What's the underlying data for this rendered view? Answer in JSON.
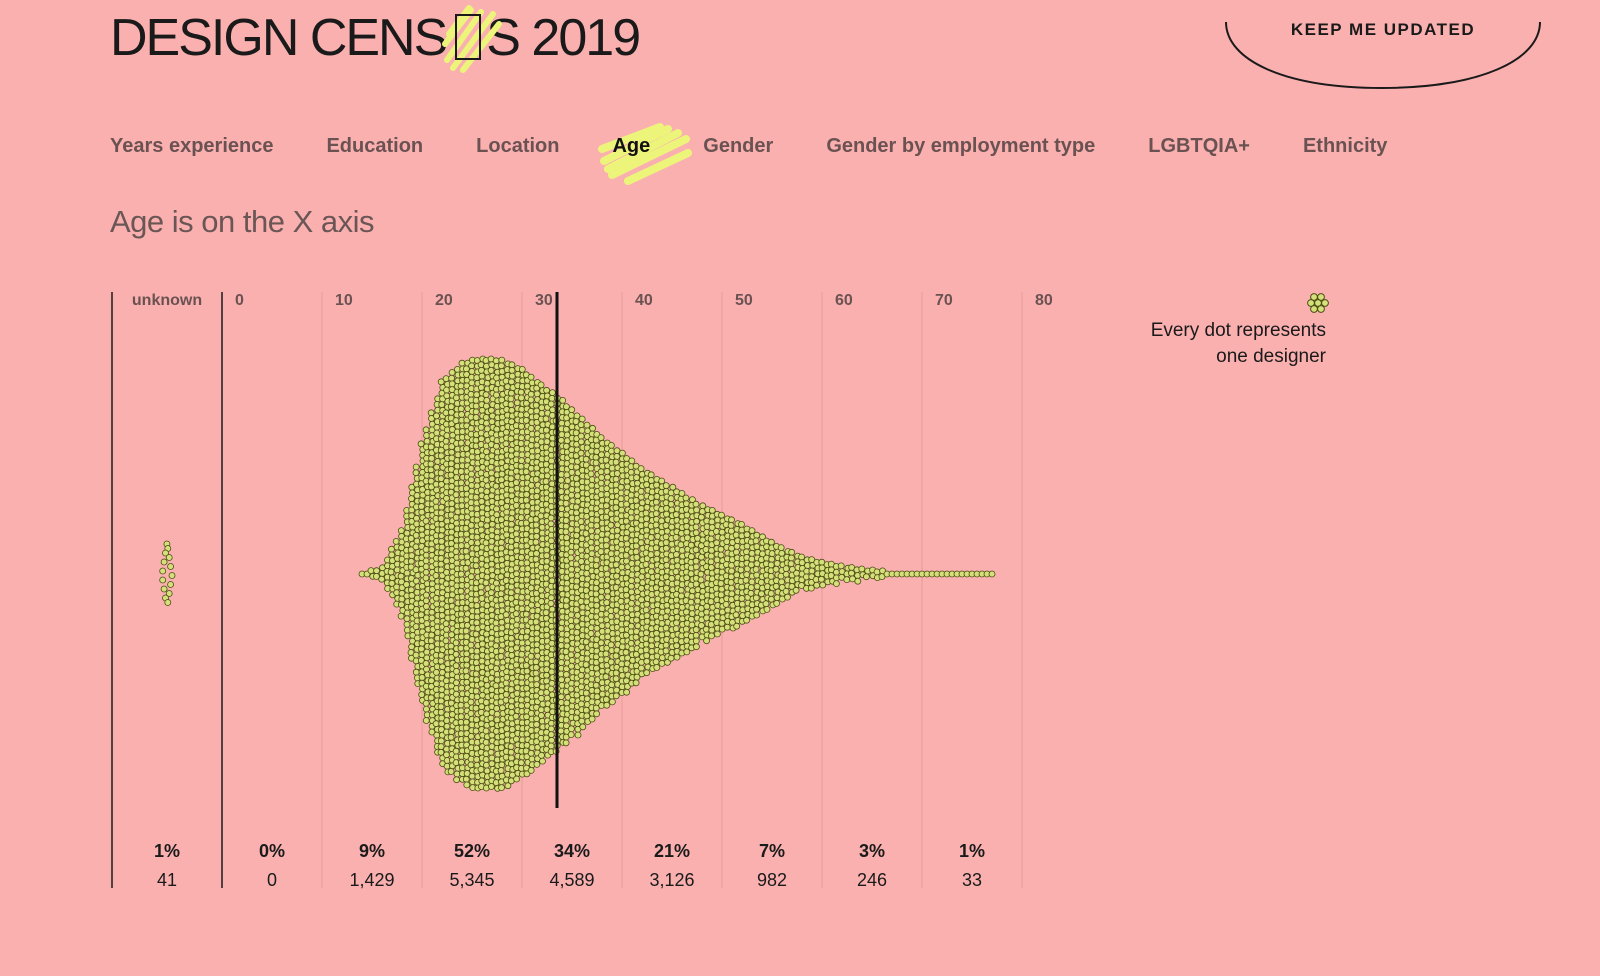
{
  "header": {
    "logo_before": "DESIGN CENS",
    "logo_after": "S 2019",
    "cta_label": "KEEP ME UPDATED"
  },
  "tabs": [
    {
      "label": "Years experience",
      "active": false
    },
    {
      "label": "Education",
      "active": false
    },
    {
      "label": "Location",
      "active": false
    },
    {
      "label": "Age",
      "active": true
    },
    {
      "label": "Gender",
      "active": false
    },
    {
      "label": "Gender by employment type",
      "active": false
    },
    {
      "label": "LGBTQIA+",
      "active": false
    },
    {
      "label": "Ethnicity",
      "active": false
    }
  ],
  "subtitle": "Age is on the X axis",
  "legend": {
    "line1": "Every dot represents",
    "line2": "one designer"
  },
  "colors": {
    "background": "#fbb0b0",
    "dot_fill": "#d6e07a",
    "dot_stroke": "#4a4d12",
    "highlight": "#ecf57a",
    "ink": "#1a1a1a"
  },
  "chart_data": {
    "type": "scatter",
    "subtype": "beeswarm",
    "xlabel": "Age",
    "unknown_label": "unknown",
    "x_ticks": [
      "0",
      "10",
      "20",
      "30",
      "40",
      "50",
      "60",
      "70",
      "80"
    ],
    "xlim": [
      0,
      80
    ],
    "median_marker": 33.5,
    "bins": [
      {
        "range": "unknown",
        "percent": "1%",
        "count": "41"
      },
      {
        "range": "0-10",
        "percent": "0%",
        "count": "0"
      },
      {
        "range": "10-20",
        "percent": "9%",
        "count": "1,429"
      },
      {
        "range": "20-30",
        "percent": "52%",
        "count": "5,345"
      },
      {
        "range": "30-40",
        "percent": "34%",
        "count": "4,589"
      },
      {
        "range": "40-50",
        "percent": "21%",
        "count": "3,126"
      },
      {
        "range": "50-60",
        "percent": "7%",
        "count": "982"
      },
      {
        "range": "60-70",
        "percent": "3%",
        "count": "246"
      },
      {
        "range": "70-80",
        "percent": "1%",
        "count": "33"
      }
    ],
    "distribution_by_age": [
      {
        "age": 14,
        "count": 2
      },
      {
        "age": 16,
        "count": 20
      },
      {
        "age": 18,
        "count": 140
      },
      {
        "age": 20,
        "count": 420
      },
      {
        "age": 22,
        "count": 620
      },
      {
        "age": 24,
        "count": 680
      },
      {
        "age": 26,
        "count": 700
      },
      {
        "age": 28,
        "count": 690
      },
      {
        "age": 30,
        "count": 660
      },
      {
        "age": 32,
        "count": 610
      },
      {
        "age": 34,
        "count": 560
      },
      {
        "age": 36,
        "count": 500
      },
      {
        "age": 38,
        "count": 440
      },
      {
        "age": 40,
        "count": 390
      },
      {
        "age": 42,
        "count": 340
      },
      {
        "age": 44,
        "count": 300
      },
      {
        "age": 46,
        "count": 260
      },
      {
        "age": 48,
        "count": 220
      },
      {
        "age": 50,
        "count": 190
      },
      {
        "age": 52,
        "count": 160
      },
      {
        "age": 54,
        "count": 120
      },
      {
        "age": 56,
        "count": 85
      },
      {
        "age": 58,
        "count": 55
      },
      {
        "age": 60,
        "count": 38
      },
      {
        "age": 62,
        "count": 26
      },
      {
        "age": 64,
        "count": 16
      },
      {
        "age": 66,
        "count": 10
      },
      {
        "age": 68,
        "count": 7
      },
      {
        "age": 70,
        "count": 5
      },
      {
        "age": 72,
        "count": 4
      },
      {
        "age": 74,
        "count": 2
      },
      {
        "age": 77,
        "count": 1
      }
    ]
  }
}
